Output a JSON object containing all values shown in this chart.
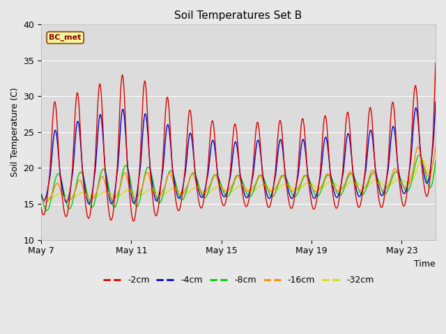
{
  "title": "Soil Temperatures Set B",
  "xlabel": "Time",
  "ylabel": "Soil Temperature (C)",
  "ylim": [
    10,
    40
  ],
  "xlim_days": [
    0,
    17.5
  ],
  "annotation": "BC_met",
  "fig_facecolor": "#e8e8e8",
  "ax_facecolor": "#dcdcdc",
  "series": {
    "-2cm": {
      "color": "#dd0000"
    },
    "-4cm": {
      "color": "#0000cc"
    },
    "-8cm": {
      "color": "#00cc00"
    },
    "-16cm": {
      "color": "#ff8800"
    },
    "-32cm": {
      "color": "#dddd00"
    }
  },
  "legend_colors": [
    "#dd0000",
    "#0000cc",
    "#00cc00",
    "#ff8800",
    "#dddd00"
  ],
  "legend_labels": [
    "-2cm",
    "-4cm",
    "-8cm",
    "-16cm",
    "-32cm"
  ],
  "x_tick_labels": [
    "May 7",
    "May 11",
    "May 15",
    "May 19",
    "May 23"
  ],
  "x_tick_positions": [
    0,
    4,
    8,
    12,
    16
  ],
  "yticks": [
    10,
    15,
    20,
    25,
    30,
    35,
    40
  ]
}
